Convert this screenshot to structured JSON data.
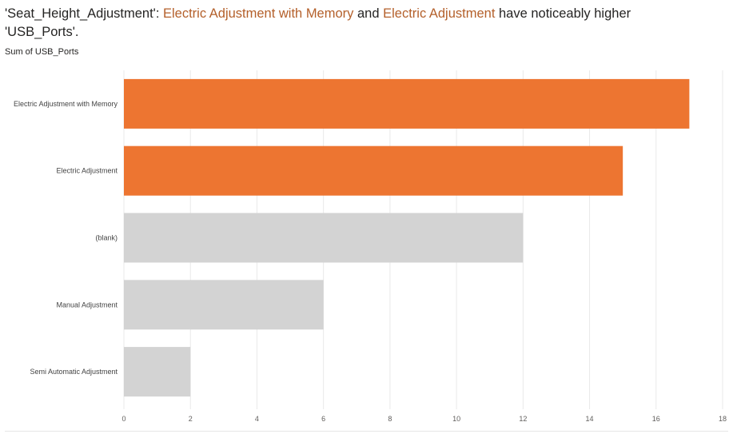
{
  "title": {
    "prefix": "'Seat_Height_Adjustment': ",
    "highlight1": "Electric Adjustment with Memory",
    "connector": " and ",
    "highlight2": "Electric Adjustment",
    "suffix": " have noticeably higher 'USB_Ports'."
  },
  "subtitle": "Sum of USB_Ports",
  "colors": {
    "highlight": "#ed7531",
    "base": "#d3d3d3",
    "grid": "#e9e9e9",
    "title_highlight": "#b4602b"
  },
  "chart_data": {
    "type": "bar",
    "orientation": "horizontal",
    "categories": [
      "Electric Adjustment with Memory",
      "Electric Adjustment",
      "(blank)",
      "Manual Adjustment",
      "Semi Automatic Adjustment"
    ],
    "values": [
      17,
      15,
      12,
      6,
      2
    ],
    "highlighted": [
      true,
      true,
      false,
      false,
      false
    ],
    "xlim": [
      0,
      18
    ],
    "xticks": [
      0,
      2,
      4,
      6,
      8,
      10,
      12,
      14,
      16,
      18
    ],
    "xlabel": "",
    "ylabel": "Sum of USB_Ports",
    "grid": true
  }
}
